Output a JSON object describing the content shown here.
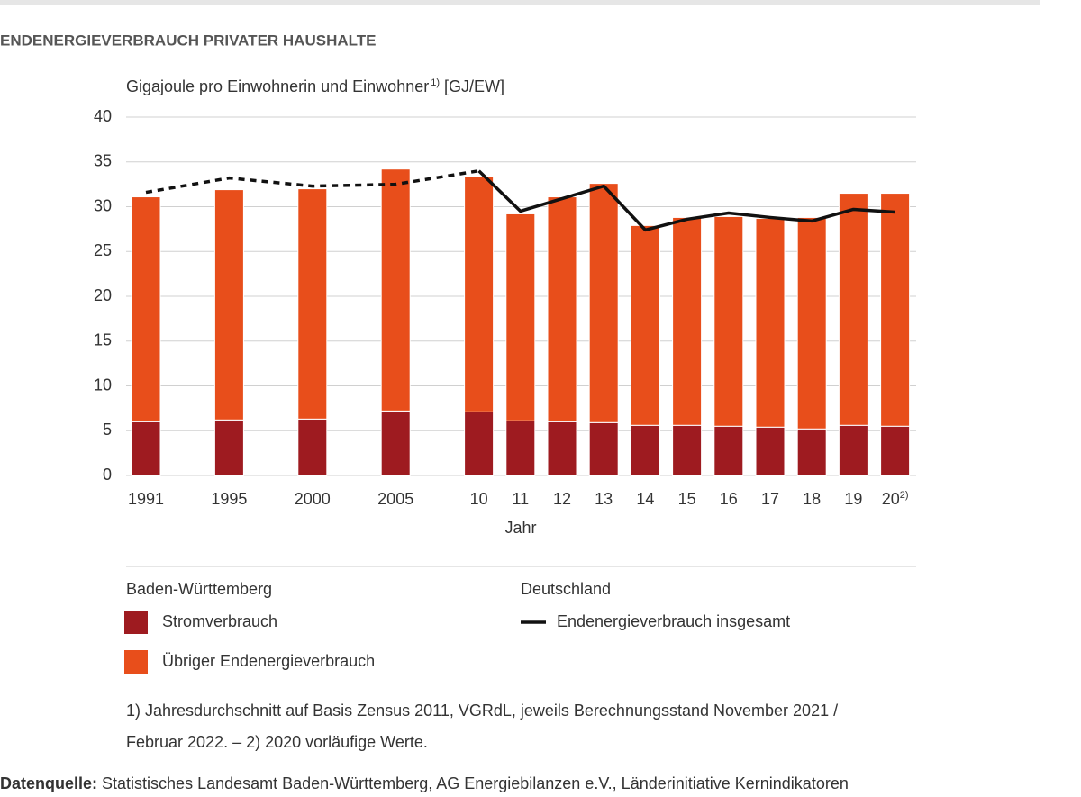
{
  "chart_data": {
    "type": "bar",
    "stacked": true,
    "title": "ENDENERGIEVERBRAUCH PRIVATER HAUSHALTE",
    "y_axis_label": "Gigajoule pro Einwohnerin und Einwohner",
    "y_axis_label_note": "1)",
    "y_axis_label_unit": " [GJ/EW]",
    "x_axis_label": "Jahr",
    "categories": [
      "1991",
      "1995",
      "2000",
      "2005",
      "10",
      "11",
      "12",
      "13",
      "14",
      "15",
      "16",
      "17",
      "18",
      "19",
      "20"
    ],
    "last_category_note": "2)",
    "ylim": [
      0,
      40
    ],
    "yticks": [
      0,
      5,
      10,
      15,
      20,
      25,
      30,
      35,
      40
    ],
    "grid": true,
    "legend_groups": [
      "Baden-Württemberg",
      "Deutschland"
    ],
    "dashed_segments": 4,
    "series": [
      {
        "name": "Stromverbrauch",
        "color": "#9e1b20",
        "legend_group": 0,
        "values": [
          6.0,
          6.2,
          6.3,
          7.2,
          7.1,
          6.1,
          6.0,
          5.9,
          5.6,
          5.6,
          5.5,
          5.4,
          5.2,
          5.6,
          5.5
        ]
      },
      {
        "name": "Übriger Endenergieverbrauch",
        "color": "#e84e1b",
        "legend_group": 0,
        "values": [
          25.1,
          25.7,
          25.7,
          27.0,
          26.3,
          23.1,
          25.1,
          26.7,
          22.3,
          23.2,
          23.4,
          23.3,
          23.6,
          25.9,
          26.0
        ]
      },
      {
        "name": "Endenergieverbrauch insgesamt",
        "type": "line",
        "color": "#111111",
        "legend_group": 1,
        "values": [
          31.6,
          33.2,
          32.3,
          32.5,
          34.0,
          29.5,
          30.9,
          32.3,
          27.4,
          28.6,
          29.3,
          28.8,
          28.4,
          29.7,
          29.4
        ]
      }
    ],
    "footnotes": [
      "1) Jahresdurchschnitt auf Basis Zensus 2011, VGRdL, jeweils Berechnungsstand November 2021 /",
      "Februar 2022. – 2) 2020 vorläufige Werte."
    ],
    "source_label": "Datenquelle:",
    "source": " Statistisches Landesamt Baden-Württemberg, AG Energiebilanzen e.V., Länderinitiative Kernindikatoren"
  }
}
